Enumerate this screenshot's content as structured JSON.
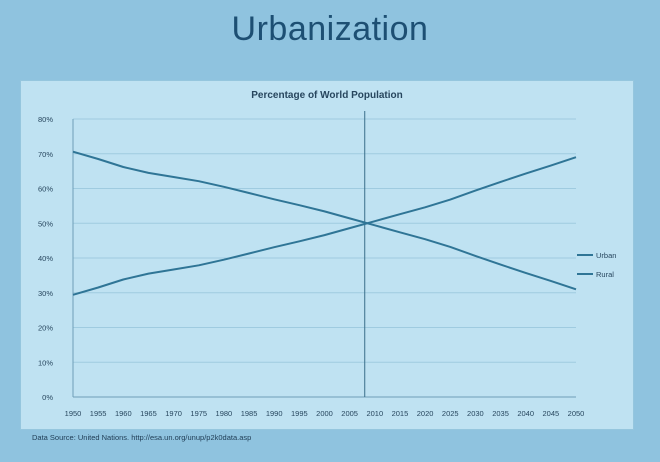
{
  "slide": {
    "title": "Urbanization"
  },
  "source_text": "Data Source: United Nations. http://esa.un.org/unup/p2k0data.asp",
  "colors": {
    "background": "#8fc3df",
    "panel": "#bfe2f2",
    "grid": "#9fcbe0",
    "line": "#2f7596",
    "text": "#27465e"
  },
  "chart_data": {
    "type": "line",
    "title": "Percentage of World Population",
    "xlabel": "",
    "ylabel": "",
    "x": [
      1950,
      1955,
      1960,
      1965,
      1970,
      1975,
      1980,
      1985,
      1990,
      1995,
      2000,
      2005,
      2010,
      2015,
      2020,
      2025,
      2030,
      2035,
      2040,
      2045,
      2050
    ],
    "ylim": [
      0,
      80
    ],
    "yticks": [
      "0%",
      "10%",
      "20%",
      "30%",
      "40%",
      "50%",
      "60%",
      "70%",
      "80%"
    ],
    "grid": true,
    "legend_position": "right",
    "vertical_marker_x": 2008,
    "series": [
      {
        "name": "Urban",
        "values": [
          29.4,
          31.5,
          33.8,
          35.5,
          36.7,
          37.9,
          39.5,
          41.3,
          43.1,
          44.8,
          46.6,
          48.6,
          50.6,
          52.6,
          54.6,
          56.8,
          59.4,
          61.9,
          64.3,
          66.6,
          69.0
        ]
      },
      {
        "name": "Rural",
        "values": [
          70.6,
          68.5,
          66.2,
          64.5,
          63.3,
          62.1,
          60.5,
          58.7,
          56.9,
          55.2,
          53.4,
          51.4,
          49.4,
          47.4,
          45.4,
          43.2,
          40.6,
          38.1,
          35.7,
          33.4,
          31.0
        ]
      }
    ]
  }
}
